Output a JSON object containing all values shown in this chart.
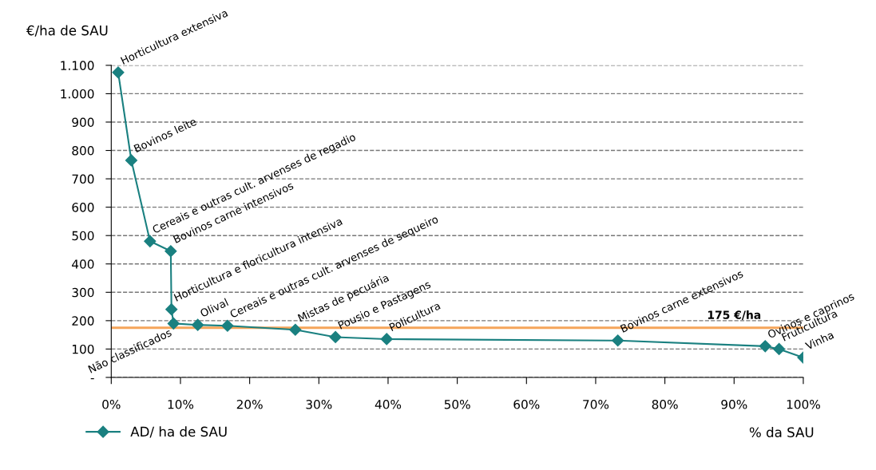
{
  "chart_data": {
    "type": "line",
    "ylabel": "€/ha de SAU",
    "xlabel": "% da SAU",
    "series": [
      {
        "name": "AD/ ha de SAU",
        "color": "#1a8080",
        "x": [
          1.0,
          2.9,
          5.6,
          8.6,
          8.7,
          9.0,
          12.5,
          16.8,
          26.6,
          32.4,
          39.8,
          73.2,
          94.5,
          96.5,
          100
        ],
        "values": [
          1075,
          765,
          480,
          445,
          240,
          190,
          185,
          182,
          168,
          142,
          135,
          130,
          110,
          100,
          70
        ]
      }
    ],
    "xlim": [
      0,
      100
    ],
    "xticks": [
      {
        "value": 0,
        "label": "0%"
      },
      {
        "value": 10,
        "label": "10%"
      },
      {
        "value": 20,
        "label": "20%"
      },
      {
        "value": 30,
        "label": "30%"
      },
      {
        "value": 40,
        "label": "40%"
      },
      {
        "value": 50,
        "label": "50%"
      },
      {
        "value": 60,
        "label": "60%"
      },
      {
        "value": 70,
        "label": "70%"
      },
      {
        "value": 80,
        "label": "80%"
      },
      {
        "value": 90,
        "label": "90%"
      },
      {
        "value": 100,
        "label": "100%"
      }
    ],
    "ylim": [
      0,
      1100
    ],
    "yticks": [
      {
        "value": 0,
        "label": "-"
      },
      100,
      200,
      300,
      400,
      500,
      600,
      700,
      800,
      900,
      {
        "value": 1000,
        "label": "1.000"
      },
      {
        "value": 1100,
        "label": "1.100"
      }
    ],
    "grid": "y",
    "marker": "diamond",
    "line_style": "solid",
    "legend": "bottom left",
    "ref_lines": [
      {
        "axis": "y",
        "value": 175,
        "label": "175 €/ha",
        "color": "#f5a55a"
      }
    ],
    "annotations": [
      {
        "text": "Horticultura extensiva",
        "x": 1.0,
        "y": 1075
      },
      {
        "text": "Bovinos leite",
        "x": 2.9,
        "y": 765
      },
      {
        "text": "Cereais e outras cult. arvenses de regadio",
        "x": 5.6,
        "y": 480
      },
      {
        "text": "Bovinos carne intensivos",
        "x": 8.6,
        "y": 445
      },
      {
        "text": "Horticultura e floricultura intensiva",
        "x": 8.7,
        "y": 240
      },
      {
        "text": "Não classificados",
        "x": 9.0,
        "y": 190
      },
      {
        "text": "Olival",
        "x": 12.5,
        "y": 185
      },
      {
        "text": "Cereais e outras cult. arvenses de sequeiro",
        "x": 16.8,
        "y": 182
      },
      {
        "text": "Mistas de pecuária",
        "x": 26.6,
        "y": 168
      },
      {
        "text": "Pousio e Pastagens",
        "x": 32.4,
        "y": 142
      },
      {
        "text": "Policultura",
        "x": 39.8,
        "y": 135
      },
      {
        "text": "Bovinos carne extensivos",
        "x": 73.2,
        "y": 130
      },
      {
        "text": "Ovinos e caprinos",
        "x": 94.5,
        "y": 110
      },
      {
        "text": "Fruticultura",
        "x": 96.5,
        "y": 100
      },
      {
        "text": "Vinha",
        "x": 100,
        "y": 70
      }
    ]
  }
}
